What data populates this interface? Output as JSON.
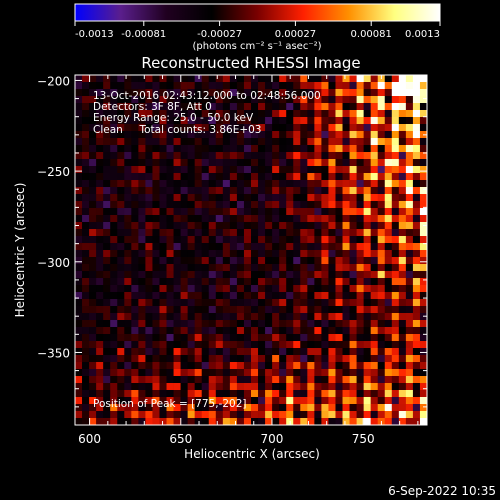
{
  "chart_data": {
    "type": "heatmap",
    "title": "Reconstructed RHESSI Image",
    "xlabel": "Heliocentric X (arcsec)",
    "ylabel": "Heliocentric Y (arcsec)",
    "xlim": [
      592,
      785
    ],
    "ylim": [
      -390,
      -197
    ],
    "x_ticks": [
      600,
      650,
      700,
      750
    ],
    "y_ticks": [
      -200,
      -250,
      -300,
      -350
    ],
    "colorbar": {
      "range": [
        -0.0013,
        0.0013
      ],
      "ticks": [
        "-0.0013",
        "-0.00081",
        "-0.00027",
        "0.00027",
        "0.00081",
        "0.0013"
      ],
      "unit_label": "(photons cm⁻² s⁻¹ asec⁻²)",
      "colormap": [
        "#0000ff",
        "#5a1e8c",
        "#200020",
        "#000000",
        "#7a0000",
        "#ff2000",
        "#ff9000",
        "#ffff80",
        "#ffffff"
      ]
    },
    "annotations": [
      "13-Oct-2016 02:43:12.000 to 02:48:56.000",
      "Detectors: 3F 8F, Att 0",
      "Energy Range: 25.0 - 50.0 keV",
      "Clean     Total counts: 3.86E+03",
      "Position of Peak = [775,-202]"
    ],
    "peak": [
      775,
      -202
    ]
  },
  "timestamp": "6-Sep-2022 10:35"
}
